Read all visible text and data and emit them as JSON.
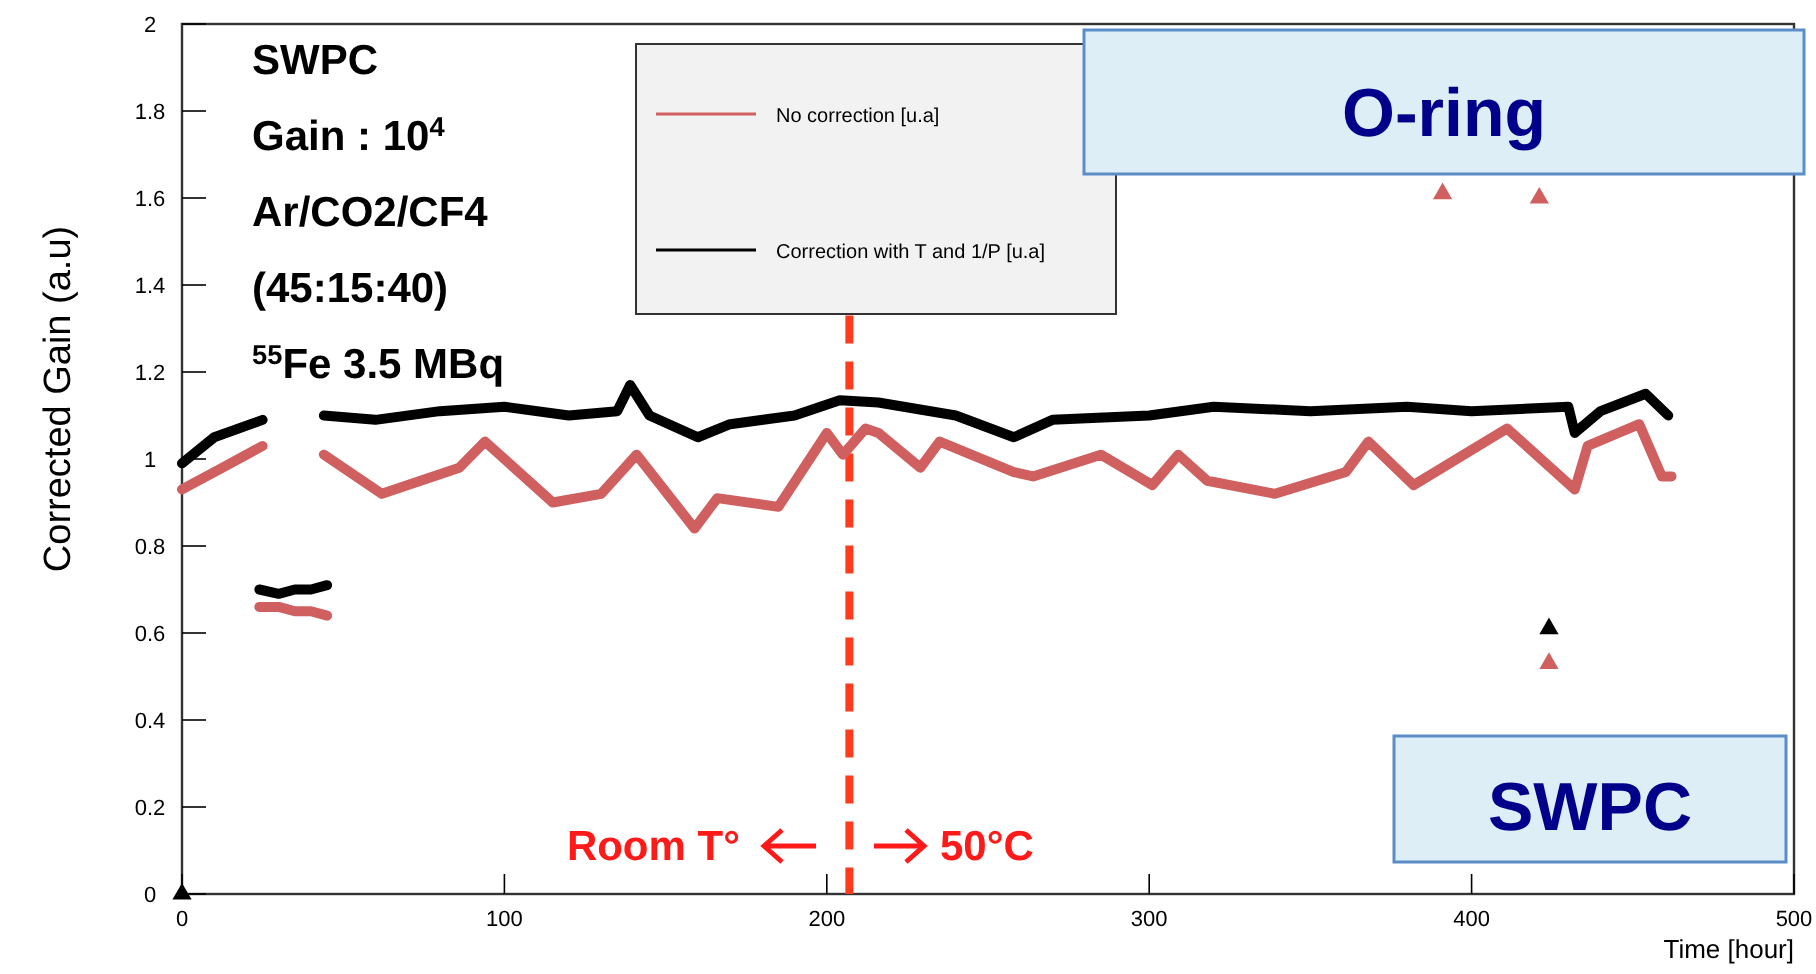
{
  "chart_data": {
    "type": "line",
    "xlabel": "Time [hour]",
    "ylabel": "Corrected Gain (a.u)",
    "xlim": [
      0,
      500
    ],
    "xticks": [
      0,
      100,
      200,
      300,
      400,
      500
    ],
    "ylim": [
      0,
      2
    ],
    "yticks": [
      0,
      0.2,
      0.4,
      0.6,
      0.8,
      1,
      1.2,
      1.4,
      1.6,
      1.8,
      2
    ],
    "grid": false,
    "legend": "top",
    "series": [
      {
        "name": "No correction [u.a]",
        "color": "#d06060",
        "x": [
          0,
          10,
          25,
          null,
          44,
          62,
          86,
          94,
          115,
          130,
          141,
          159,
          166,
          185,
          200,
          205,
          212,
          216,
          229,
          235,
          258,
          264,
          285,
          301,
          309,
          318,
          339,
          361,
          368,
          382,
          411,
          432,
          436,
          452,
          459,
          462
        ],
        "values": [
          0.93,
          0.97,
          1.03,
          null,
          1.01,
          0.92,
          0.98,
          1.04,
          0.9,
          0.92,
          1.01,
          0.84,
          0.91,
          0.89,
          1.06,
          1.01,
          1.07,
          1.06,
          0.98,
          1.04,
          0.97,
          0.96,
          1.01,
          0.94,
          1.01,
          0.95,
          0.92,
          0.97,
          1.04,
          0.94,
          1.07,
          0.93,
          1.03,
          1.08,
          0.96,
          0.96
        ]
      },
      {
        "name": "Correction with T and 1/P [u.a]",
        "color": "#000000",
        "x": [
          0,
          10,
          25,
          null,
          44,
          60,
          80,
          100,
          120,
          135,
          139,
          145,
          160,
          170,
          190,
          204,
          216,
          240,
          258,
          270,
          300,
          320,
          350,
          380,
          400,
          430,
          432,
          440,
          454,
          461
        ],
        "values": [
          0.99,
          1.05,
          1.09,
          null,
          1.1,
          1.09,
          1.11,
          1.12,
          1.1,
          1.11,
          1.17,
          1.1,
          1.05,
          1.08,
          1.1,
          1.135,
          1.13,
          1.1,
          1.05,
          1.09,
          1.1,
          1.12,
          1.11,
          1.12,
          1.11,
          1.12,
          1.06,
          1.11,
          1.15,
          1.1
        ]
      },
      {
        "color": "#d06060",
        "x": [
          24,
          30,
          35,
          40,
          45
        ],
        "values": [
          0.66,
          0.66,
          0.65,
          0.65,
          0.64
        ]
      },
      {
        "color": "#000000",
        "x": [
          24,
          30,
          35,
          40,
          45
        ],
        "values": [
          0.7,
          0.69,
          0.7,
          0.7,
          0.71
        ]
      },
      {
        "color": "#d06060",
        "type": "scatter",
        "marker": "triangle",
        "x": [
          391,
          421,
          424
        ],
        "values": [
          1.61,
          1.6,
          0.53
        ]
      },
      {
        "color": "#000000",
        "type": "scatter",
        "marker": "triangle",
        "x": [
          0,
          424
        ],
        "values": [
          0,
          0.61
        ]
      }
    ],
    "ref_lines": [
      {
        "axis": "x",
        "value": 207,
        "color": "#ff3b1f",
        "line_style": "dashed"
      }
    ],
    "annotations": [
      "SWPC",
      "Gain : 10$^{4}$",
      "Ar/CO2/CF4",
      "(45:15:40)",
      "$^{55}$Fe 3.5 MBq",
      "O-ring",
      "SWPC",
      "Room T°",
      "50°C"
    ]
  }
}
